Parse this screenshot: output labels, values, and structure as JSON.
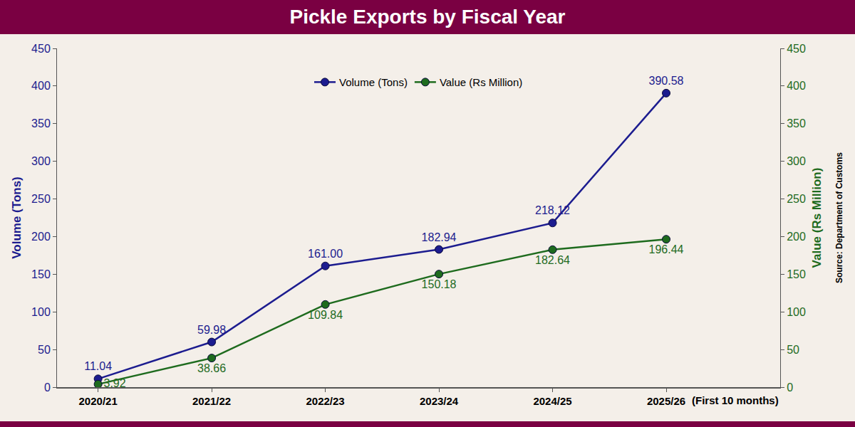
{
  "chart_data": {
    "type": "line",
    "title": "Pickle Exports by Fiscal Year",
    "categories": [
      "2020/21",
      "2021/22",
      "2022/23",
      "2023/24",
      "2024/25",
      "2025/26"
    ],
    "series": [
      {
        "name": "Volume (Tons)",
        "color": "#1c1c8f",
        "marker": "circle",
        "line_style": "solid",
        "values": [
          11.04,
          59.98,
          161.0,
          182.94,
          218.12,
          390.58
        ],
        "value_labels": [
          "11.04",
          "59.98",
          "161.00",
          "182.94",
          "218.12",
          "390.58"
        ]
      },
      {
        "name": "Value (Rs Million)",
        "color": "#1e6b1e",
        "marker": "circle",
        "line_style": "solid",
        "axis": "y2",
        "values": [
          3.92,
          38.66,
          109.84,
          150.18,
          182.64,
          196.44
        ],
        "value_labels": [
          "3.92",
          "38.66",
          "109.84",
          "150.18",
          "182.64",
          "196.44"
        ]
      }
    ],
    "y_label": "Volume (Tons)",
    "y2_label": "Value (Rs Million)",
    "ylim": [
      0,
      450
    ],
    "yticks": [
      0,
      50,
      100,
      150,
      200,
      250,
      300,
      350,
      400,
      450
    ],
    "y2lim": [
      0,
      450
    ],
    "y2ticks": [
      0,
      50,
      100,
      150,
      200,
      250,
      300,
      350,
      400,
      450
    ],
    "annotations": [
      {
        "text": "(First 10 months)",
        "category": "2025/26"
      }
    ],
    "source": "Source: Department of Customs",
    "grid": false,
    "legend": "top",
    "data_labels": true
  }
}
